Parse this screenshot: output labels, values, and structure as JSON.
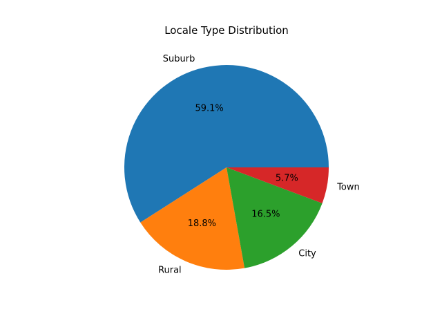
{
  "chart_data": {
    "type": "pie",
    "title": "Locale Type Distribution",
    "categories": [
      "Suburb",
      "Rural",
      "City",
      "Town"
    ],
    "values": [
      59.1,
      18.8,
      16.5,
      5.7
    ],
    "value_labels": [
      "59.1%",
      "18.8%",
      "16.5%",
      "5.7%"
    ],
    "colors": [
      "#1f77b4",
      "#ff7f0e",
      "#2ca02c",
      "#d62728"
    ],
    "start_angle_deg": 0,
    "direction": "counterclockwise",
    "legend": "none"
  }
}
